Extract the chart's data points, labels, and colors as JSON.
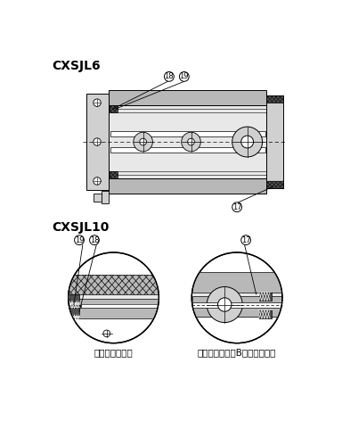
{
  "title1": "CXSJL6",
  "title2": "CXSJL10",
  "label_left": "ロッドカバー部",
  "label_right": "ピストンロッドB側ピストン部",
  "bg_color": "#ffffff",
  "lc": "#000000",
  "gray1": "#b8b8b8",
  "gray2": "#d0d0d0",
  "gray3": "#e8e8e8",
  "gray_dark": "#808080",
  "seal_color": "#505050"
}
